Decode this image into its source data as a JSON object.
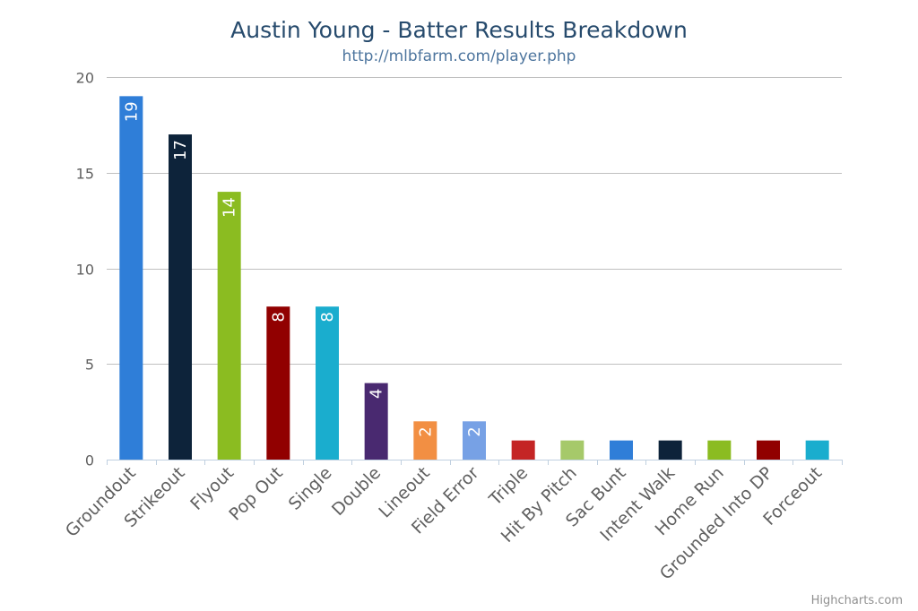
{
  "chart_data": {
    "type": "bar",
    "title": "Austin Young - Batter Results Breakdown",
    "subtitle": "http://mlbfarm.com/player.php",
    "categories": [
      "Groundout",
      "Strikeout",
      "Flyout",
      "Pop Out",
      "Single",
      "Double",
      "Lineout",
      "Field Error",
      "Triple",
      "Hit By Pitch",
      "Sac Bunt",
      "Intent Walk",
      "Home Run",
      "Grounded Into DP",
      "Forceout"
    ],
    "values": [
      19,
      17,
      14,
      8,
      8,
      4,
      2,
      2,
      1,
      1,
      1,
      1,
      1,
      1,
      1
    ],
    "data_labels_shown": [
      true,
      true,
      true,
      true,
      true,
      true,
      true,
      true,
      false,
      false,
      false,
      false,
      false,
      false,
      false
    ],
    "colors": [
      "#2f7ed8",
      "#0d233a",
      "#8bbc21",
      "#910000",
      "#1aadce",
      "#492970",
      "#f28f43",
      "#77a1e5",
      "#c42525",
      "#a6c96a",
      "#2f7ed8",
      "#0d233a",
      "#8bbc21",
      "#910000",
      "#1aadce"
    ],
    "ylim": [
      0,
      20
    ],
    "yticks": [
      0,
      5,
      10,
      15,
      20
    ],
    "grid": true,
    "legend": "none"
  },
  "credits": "Highcharts.com"
}
